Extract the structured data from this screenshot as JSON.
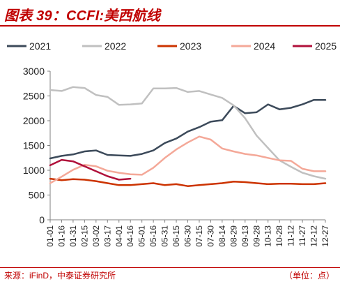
{
  "figure": {
    "title": "图表 39：CCFI:美西航线",
    "source": "来源：iFinD，中泰证券研究所",
    "unit": "（单位：点）",
    "accent_color": "#c00000"
  },
  "chart_data": {
    "type": "line",
    "title": "",
    "xlabel": "",
    "ylabel": "",
    "ylim": [
      0,
      3000
    ],
    "yticks": [
      0,
      500,
      1000,
      1500,
      2000,
      2500,
      3000
    ],
    "grid": false,
    "legend_position": "top",
    "x": [
      "01-01",
      "01-16",
      "01-31",
      "02-15",
      "03-02",
      "03-17",
      "04-01",
      "04-16",
      "05-01",
      "05-16",
      "05-31",
      "06-15",
      "06-30",
      "07-15",
      "07-30",
      "08-14",
      "08-29",
      "09-13",
      "09-28",
      "10-13",
      "10-28",
      "11-12",
      "11-27",
      "12-12",
      "12-27"
    ],
    "series": [
      {
        "name": "2021",
        "color": "#3c4a5a",
        "values": [
          1240,
          1290,
          1320,
          1380,
          1400,
          1310,
          1300,
          1290,
          1330,
          1400,
          1550,
          1640,
          1780,
          1870,
          1980,
          2010,
          2300,
          2150,
          2170,
          2330,
          2230,
          2260,
          2330,
          2420,
          2420
        ]
      },
      {
        "name": "2022",
        "color": "#c0c0c0",
        "values": [
          2620,
          2600,
          2680,
          2660,
          2520,
          2480,
          2320,
          2330,
          2350,
          2650,
          2650,
          2660,
          2580,
          2600,
          2530,
          2460,
          2310,
          2050,
          1700,
          1450,
          1200,
          1070,
          950,
          880,
          830
        ]
      },
      {
        "name": "2023",
        "color": "#cc3300",
        "values": [
          830,
          800,
          820,
          810,
          780,
          740,
          700,
          700,
          720,
          740,
          700,
          720,
          680,
          700,
          720,
          740,
          770,
          760,
          740,
          720,
          730,
          730,
          720,
          720,
          740
        ]
      },
      {
        "name": "2024",
        "color": "#f4a898",
        "values": [
          740,
          870,
          1010,
          1110,
          1080,
          990,
          950,
          920,
          910,
          1050,
          1250,
          1420,
          1560,
          1680,
          1620,
          1440,
          1380,
          1330,
          1300,
          1250,
          1200,
          1190,
          1030,
          980,
          980
        ]
      },
      {
        "name": "2025",
        "color": "#b0103a",
        "values": [
          1100,
          1210,
          1180,
          1080,
          980,
          880,
          810,
          830,
          null,
          null,
          null,
          null,
          null,
          null,
          null,
          null,
          null,
          null,
          null,
          null,
          null,
          null,
          null,
          null,
          null
        ]
      }
    ]
  }
}
